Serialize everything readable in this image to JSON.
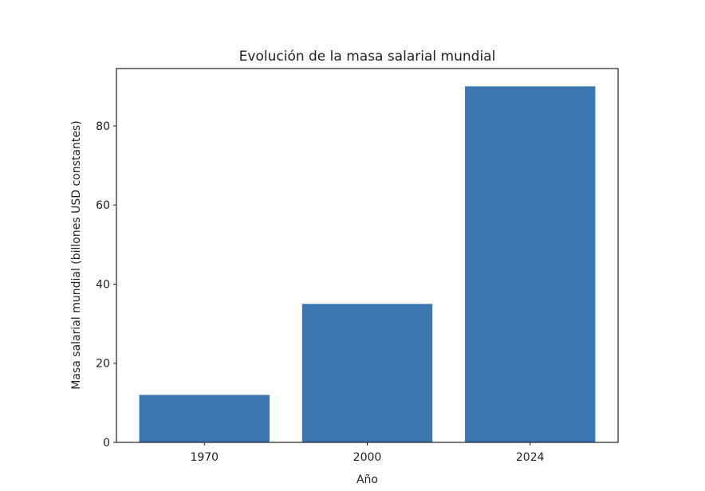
{
  "chart_data": {
    "type": "bar",
    "title": "Evolución de la masa salarial mundial",
    "xlabel": "Año",
    "ylabel": "Masa salarial mundial (billones USD constantes)",
    "categories": [
      "1970",
      "2000",
      "2024"
    ],
    "values": [
      12,
      35,
      90
    ],
    "ylim": [
      0,
      94.5
    ],
    "yticks": [
      0,
      20,
      40,
      60,
      80
    ],
    "grid": false,
    "bar_color": "#3a76af"
  }
}
